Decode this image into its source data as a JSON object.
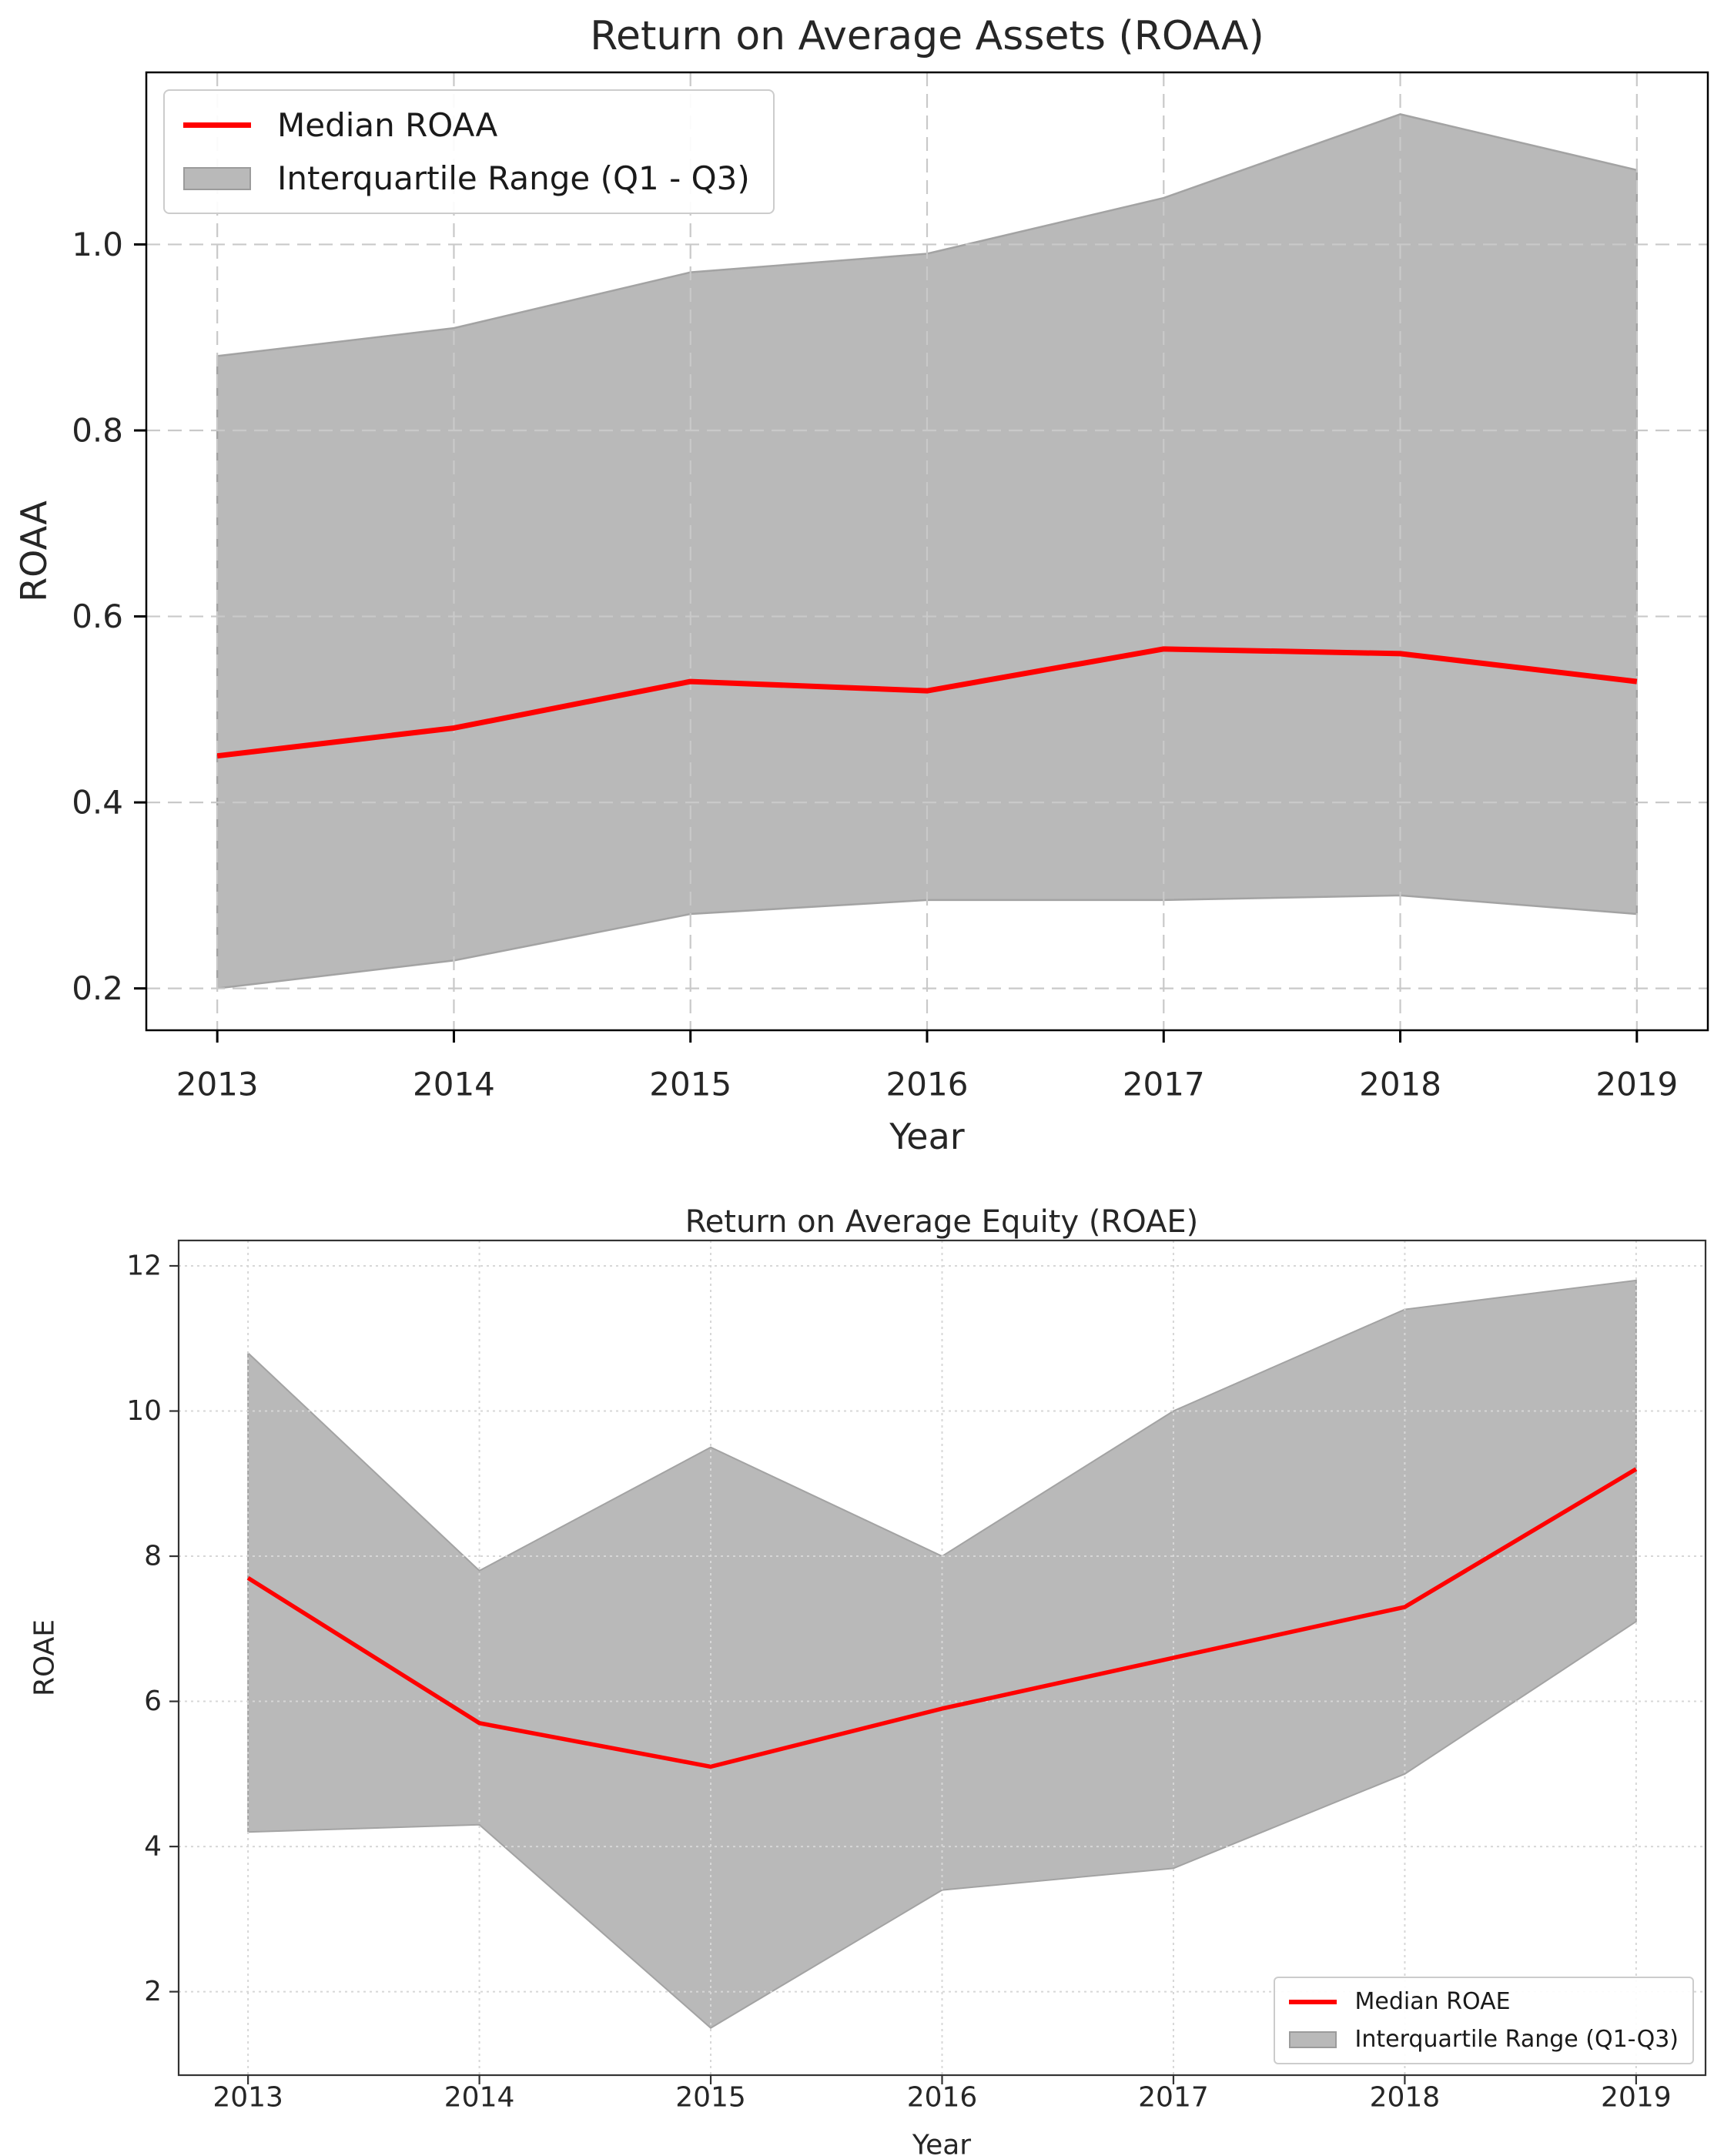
{
  "page": {
    "background": "#ffffff"
  },
  "chart_data": [
    {
      "type": "line",
      "title": "Return on Average Assets (ROAA)",
      "xlabel": "Year",
      "ylabel": "ROAA",
      "x": [
        2013,
        2014,
        2015,
        2016,
        2017,
        2018,
        2019
      ],
      "series": [
        {
          "name": "Median ROAA",
          "kind": "line",
          "color": "#ff0000",
          "values": [
            0.45,
            0.48,
            0.53,
            0.52,
            0.565,
            0.56,
            0.53
          ]
        },
        {
          "name": "Interquartile Range (Q1 - Q3)",
          "kind": "band",
          "color": "#b9b9b9",
          "edge_color": "#a3a3a3",
          "upper": [
            0.88,
            0.91,
            0.97,
            0.99,
            1.05,
            1.14,
            1.08
          ],
          "lower": [
            0.2,
            0.23,
            0.28,
            0.295,
            0.295,
            0.3,
            0.28
          ]
        }
      ],
      "xlim": [
        2012.7,
        2019.3
      ],
      "ylim": [
        0.155,
        1.185
      ],
      "xticks": [
        2013,
        2014,
        2015,
        2016,
        2017,
        2018,
        2019
      ],
      "xtick_labels": [
        "2013",
        "2014",
        "2015",
        "2016",
        "2017",
        "2018",
        "2019"
      ],
      "yticks": [
        0.2,
        0.4,
        0.6,
        0.8,
        1.0
      ],
      "ytick_labels": [
        "0.2",
        "0.4",
        "0.6",
        "0.8",
        "1.0"
      ],
      "grid": true,
      "legend_position": "upper-left"
    },
    {
      "type": "line",
      "title": "Return on Average Equity (ROAE)",
      "xlabel": "Year",
      "ylabel": "ROAE",
      "x": [
        2013,
        2014,
        2015,
        2016,
        2017,
        2018,
        2019
      ],
      "series": [
        {
          "name": "Median ROAE",
          "kind": "line",
          "color": "#ff0000",
          "values": [
            7.7,
            5.7,
            5.1,
            5.9,
            6.6,
            7.3,
            9.2
          ]
        },
        {
          "name": "Interquartile Range (Q1-Q3)",
          "kind": "band",
          "color": "#b9b9b9",
          "edge_color": "#a3a3a3",
          "upper": [
            10.8,
            7.8,
            9.5,
            8.0,
            10.0,
            11.4,
            11.8
          ],
          "lower": [
            4.2,
            4.3,
            1.5,
            3.4,
            3.7,
            5.0,
            7.1
          ]
        }
      ],
      "xlim": [
        2012.7,
        2019.3
      ],
      "ylim": [
        0.85,
        12.35
      ],
      "xticks": [
        2013,
        2014,
        2015,
        2016,
        2017,
        2018,
        2019
      ],
      "xtick_labels": [
        "2013",
        "2014",
        "2015",
        "2016",
        "2017",
        "2018",
        "2019"
      ],
      "yticks": [
        2,
        4,
        6,
        8,
        10,
        12
      ],
      "ytick_labels": [
        "2",
        "4",
        "6",
        "8",
        "10",
        "12"
      ],
      "grid": true,
      "legend_position": "lower-right"
    }
  ]
}
